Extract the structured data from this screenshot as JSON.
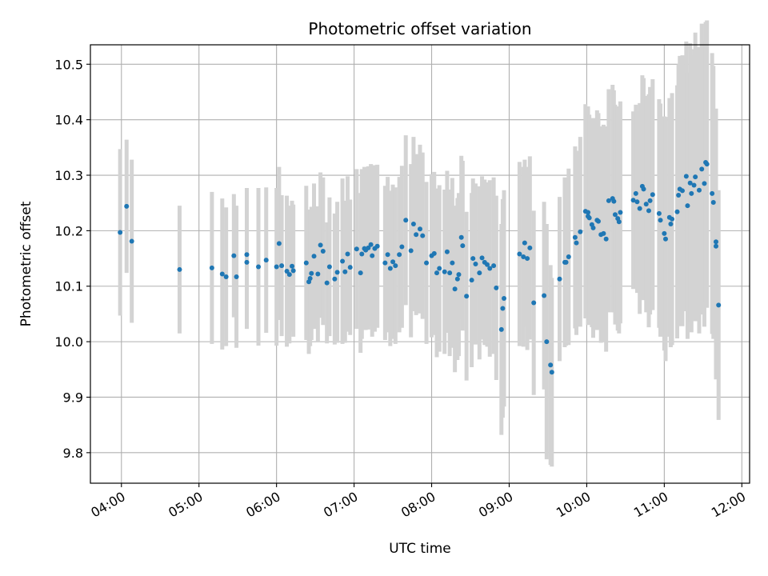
{
  "chart_data": {
    "type": "scatter",
    "title": "Photometric offset variation",
    "xlabel": "UTC time",
    "ylabel": "Photometric offset",
    "x_is_time": true,
    "xlim": [
      "03:36",
      "12:06"
    ],
    "ylim": [
      9.745,
      10.535
    ],
    "xticks": [
      "04:00",
      "05:00",
      "06:00",
      "07:00",
      "08:00",
      "09:00",
      "10:00",
      "11:00",
      "12:00"
    ],
    "yticks": [
      "9.8",
      "9.9",
      "10.0",
      "10.1",
      "10.2",
      "10.3",
      "10.4",
      "10.5"
    ],
    "grid": true,
    "colors": {
      "points": "#1f77b4",
      "errorbars": "#d3d3d3",
      "grid": "#b0b0b0"
    },
    "series": [
      {
        "points": [
          [
            "03:59",
            10.197,
            0.15
          ],
          [
            "04:04",
            10.244,
            0.12
          ],
          [
            "04:08",
            10.181,
            0.147
          ],
          [
            "04:45",
            10.13,
            0.115
          ],
          [
            "05:10",
            10.133,
            0.137
          ],
          [
            "05:18",
            10.122,
            0.136
          ],
          [
            "05:21",
            10.117,
            0.125
          ],
          [
            "05:27",
            10.155,
            0.111
          ],
          [
            "05:29",
            10.117,
            0.128
          ],
          [
            "05:37",
            10.157,
            0.12
          ],
          [
            "05:37",
            10.143,
            0.12
          ],
          [
            "05:46",
            10.135,
            0.142
          ],
          [
            "05:52",
            10.147,
            0.131
          ],
          [
            "06:00",
            10.135,
            0.142
          ],
          [
            "06:02",
            10.177,
            0.138
          ],
          [
            "06:04",
            10.137,
            0.127
          ],
          [
            "06:08",
            10.127,
            0.136
          ],
          [
            "06:10",
            10.121,
            0.124
          ],
          [
            "06:12",
            10.136,
            0.118
          ],
          [
            "06:13",
            10.128,
            0.119
          ],
          [
            "06:23",
            10.142,
            0.139
          ],
          [
            "06:25",
            10.108,
            0.13
          ],
          [
            "06:26",
            10.114,
            0.122
          ],
          [
            "06:27",
            10.123,
            0.12
          ],
          [
            "06:29",
            10.154,
            0.131
          ],
          [
            "06:32",
            10.122,
            0.122
          ],
          [
            "06:34",
            10.174,
            0.131
          ],
          [
            "06:36",
            10.163,
            0.133
          ],
          [
            "06:39",
            10.106,
            0.109
          ],
          [
            "06:41",
            10.135,
            0.125
          ],
          [
            "06:45",
            10.113,
            0.118
          ],
          [
            "06:47",
            10.125,
            0.127
          ],
          [
            "06:51",
            10.145,
            0.149
          ],
          [
            "06:53",
            10.126,
            0.128
          ],
          [
            "06:55",
            10.158,
            0.14
          ],
          [
            "06:57",
            10.134,
            0.122
          ],
          [
            "07:02",
            10.167,
            0.144
          ],
          [
            "07:05",
            10.124,
            0.144
          ],
          [
            "07:06",
            10.158,
            0.153
          ],
          [
            "07:08",
            10.168,
            0.147
          ],
          [
            "07:09",
            10.165,
            0.144
          ],
          [
            "07:11",
            10.169,
            0.147
          ],
          [
            "07:13",
            10.175,
            0.145
          ],
          [
            "07:14",
            10.155,
            0.146
          ],
          [
            "07:16",
            10.168,
            0.15
          ],
          [
            "07:18",
            10.172,
            0.147
          ],
          [
            "07:24",
            10.142,
            0.139
          ],
          [
            "07:26",
            10.157,
            0.14
          ],
          [
            "07:28",
            10.132,
            0.14
          ],
          [
            "07:30",
            10.144,
            0.139
          ],
          [
            "07:32",
            10.137,
            0.141
          ],
          [
            "07:35",
            10.157,
            0.14
          ],
          [
            "07:37",
            10.171,
            0.146
          ],
          [
            "07:40",
            10.219,
            0.153
          ],
          [
            "07:44",
            10.164,
            0.156
          ],
          [
            "07:46",
            10.212,
            0.157
          ],
          [
            "07:48",
            10.193,
            0.145
          ],
          [
            "07:51",
            10.203,
            0.152
          ],
          [
            "07:53",
            10.191,
            0.15
          ],
          [
            "07:56",
            10.142,
            0.146
          ],
          [
            "08:00",
            10.155,
            0.147
          ],
          [
            "08:02",
            10.159,
            0.147
          ],
          [
            "08:04",
            10.124,
            0.152
          ],
          [
            "08:06",
            10.132,
            0.15
          ],
          [
            "08:10",
            10.126,
            0.148
          ],
          [
            "08:12",
            10.162,
            0.146
          ],
          [
            "08:14",
            10.124,
            0.15
          ],
          [
            "08:16",
            10.142,
            0.153
          ],
          [
            "08:18",
            10.095,
            0.15
          ],
          [
            "08:20",
            10.113,
            0.146
          ],
          [
            "08:21",
            10.121,
            0.147
          ],
          [
            "08:23",
            10.188,
            0.147
          ],
          [
            "08:24",
            10.173,
            0.153
          ],
          [
            "08:27",
            10.082,
            0.152
          ],
          [
            "08:31",
            10.111,
            0.157
          ],
          [
            "08:32",
            10.15,
            0.144
          ],
          [
            "08:34",
            10.14,
            0.145
          ],
          [
            "08:37",
            10.124,
            0.156
          ],
          [
            "08:39",
            10.151,
            0.147
          ],
          [
            "08:41",
            10.143,
            0.149
          ],
          [
            "08:43",
            10.139,
            0.148
          ],
          [
            "08:45",
            10.132,
            0.159
          ],
          [
            "08:48",
            10.137,
            0.159
          ],
          [
            "08:50",
            10.097,
            0.166
          ],
          [
            "08:54",
            10.022,
            0.19
          ],
          [
            "08:55",
            10.06,
            0.197
          ],
          [
            "08:56",
            10.078,
            0.195
          ],
          [
            "09:08",
            10.158,
            0.166
          ],
          [
            "09:11",
            10.153,
            0.162
          ],
          [
            "09:12",
            10.178,
            0.15
          ],
          [
            "09:14",
            10.15,
            0.165
          ],
          [
            "09:16",
            10.169,
            0.165
          ],
          [
            "09:19",
            10.07,
            0.166
          ],
          [
            "09:27",
            10.083,
            0.169
          ],
          [
            "09:29",
            10.0,
            0.212
          ],
          [
            "09:32",
            9.958,
            0.18
          ],
          [
            "09:33",
            9.945,
            0.17
          ],
          [
            "09:39",
            10.113,
            0.148
          ],
          [
            "09:43",
            10.143,
            0.153
          ],
          [
            "09:44",
            10.143,
            0.15
          ],
          [
            "09:46",
            10.153,
            0.159
          ],
          [
            "09:51",
            10.188,
            0.164
          ],
          [
            "09:52",
            10.178,
            0.166
          ],
          [
            "09:55",
            10.198,
            0.171
          ],
          [
            "09:59",
            10.235,
            0.193
          ],
          [
            "10:01",
            10.233,
            0.191
          ],
          [
            "10:01",
            10.226,
            0.196
          ],
          [
            "10:02",
            10.223,
            0.186
          ],
          [
            "10:04",
            10.211,
            0.185
          ],
          [
            "10:05",
            10.205,
            0.198
          ],
          [
            "10:08",
            10.219,
            0.198
          ],
          [
            "10:09",
            10.217,
            0.195
          ],
          [
            "10:11",
            10.193,
            0.195
          ],
          [
            "10:13",
            10.195,
            0.196
          ],
          [
            "10:15",
            10.185,
            0.203
          ],
          [
            "10:17",
            10.254,
            0.201
          ],
          [
            "10:20",
            10.258,
            0.205
          ],
          [
            "10:21",
            10.253,
            0.2
          ],
          [
            "10:22",
            10.229,
            0.198
          ],
          [
            "10:24",
            10.222,
            0.202
          ],
          [
            "10:25",
            10.216,
            0.201
          ],
          [
            "10:26",
            10.233,
            0.2
          ],
          [
            "10:36",
            10.255,
            0.16
          ],
          [
            "10:38",
            10.267,
            0.16
          ],
          [
            "10:39",
            10.252,
            0.164
          ],
          [
            "10:41",
            10.24,
            0.19
          ],
          [
            "10:43",
            10.28,
            0.2
          ],
          [
            "10:44",
            10.275,
            0.2
          ],
          [
            "10:46",
            10.248,
            0.195
          ],
          [
            "10:48",
            10.236,
            0.21
          ],
          [
            "10:49",
            10.254,
            0.205
          ],
          [
            "10:51",
            10.265,
            0.208
          ],
          [
            "10:56",
            10.231,
            0.206
          ],
          [
            "10:57",
            10.219,
            0.21
          ],
          [
            "11:00",
            10.195,
            0.211
          ],
          [
            "11:01",
            10.185,
            0.22
          ],
          [
            "11:04",
            10.224,
            0.215
          ],
          [
            "11:05",
            10.212,
            0.222
          ],
          [
            "11:06",
            10.221,
            0.227
          ],
          [
            "11:10",
            10.234,
            0.228
          ],
          [
            "11:11",
            10.264,
            0.236
          ],
          [
            "11:12",
            10.275,
            0.24
          ],
          [
            "11:14",
            10.272,
            0.244
          ],
          [
            "11:17",
            10.298,
            0.243
          ],
          [
            "11:18",
            10.245,
            0.24
          ],
          [
            "11:20",
            10.286,
            0.252
          ],
          [
            "11:21",
            10.267,
            0.25
          ],
          [
            "11:23",
            10.282,
            0.245
          ],
          [
            "11:24",
            10.297,
            0.26
          ],
          [
            "11:27",
            10.273,
            0.258
          ],
          [
            "11:29",
            10.311,
            0.262
          ],
          [
            "11:31",
            10.285,
            0.258
          ],
          [
            "11:32",
            10.323,
            0.253
          ],
          [
            "11:33",
            10.32,
            0.259
          ],
          [
            "11:37",
            10.267,
            0.253
          ],
          [
            "11:38",
            10.251,
            0.246
          ],
          [
            "11:40",
            10.18,
            0.24
          ],
          [
            "11:40",
            10.172,
            0.24
          ],
          [
            "11:42",
            10.066,
            0.207
          ]
        ]
      }
    ]
  }
}
